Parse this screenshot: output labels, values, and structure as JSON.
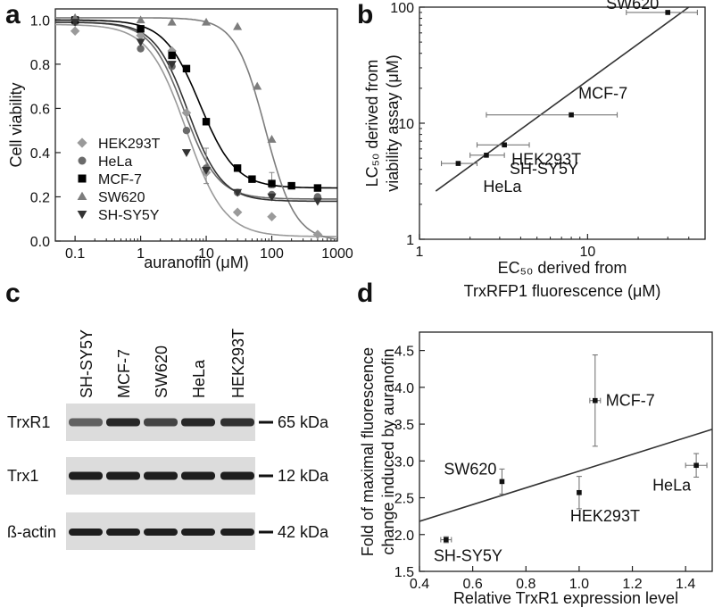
{
  "panel_labels": {
    "a": "a",
    "b": "b",
    "c": "c",
    "d": "d"
  },
  "chart_data": [
    {
      "panel": "a",
      "type": "scatter",
      "xlabel": "auranofin (μM)",
      "ylabel": "Cell viability",
      "xscale": "log",
      "xlim": [
        0.05,
        1000
      ],
      "ylim": [
        0.0,
        1.05
      ],
      "xticks": [
        0.1,
        1,
        10,
        100,
        1000
      ],
      "xtick_labels": [
        "0.1",
        "1",
        "10",
        "100",
        "1000"
      ],
      "yticks": [
        0.0,
        0.2,
        0.4,
        0.6,
        0.8,
        1.0
      ],
      "ytick_labels": [
        "0.0",
        "0.2",
        "0.4",
        "0.6",
        "0.8",
        "1.0"
      ],
      "legend_position": "bottom-left",
      "series": [
        {
          "name": "HEK293T",
          "marker": "diamond",
          "color": "#9a9a9a",
          "x": [
            0.1,
            1,
            3,
            5,
            10,
            30,
            100,
            500
          ],
          "y": [
            0.95,
            0.93,
            0.86,
            0.58,
            0.31,
            0.13,
            0.11,
            0.03
          ],
          "fit": {
            "bottom": 0.02,
            "top": 0.98,
            "ec50": 5.0,
            "hill": 1.5
          }
        },
        {
          "name": "HeLa",
          "marker": "circle",
          "color": "#6a6a6a",
          "x": [
            0.1,
            1,
            3,
            5,
            10,
            30,
            100,
            500
          ],
          "y": [
            0.99,
            0.87,
            0.79,
            0.5,
            0.33,
            0.22,
            0.21,
            0.2
          ],
          "fit": {
            "bottom": 0.19,
            "top": 0.99,
            "ec50": 4.6,
            "hill": 1.7
          }
        },
        {
          "name": "MCF-7",
          "marker": "square",
          "color": "#000000",
          "x": [
            0.1,
            1,
            3,
            5,
            10,
            30,
            50,
            100,
            200,
            500
          ],
          "y": [
            1.0,
            0.96,
            0.84,
            0.78,
            0.54,
            0.33,
            0.28,
            0.26,
            0.25,
            0.24
          ],
          "fit": {
            "bottom": 0.24,
            "top": 1.0,
            "ec50": 8.0,
            "hill": 1.6
          }
        },
        {
          "name": "SW620",
          "marker": "triangle-up",
          "color": "#7d7d7d",
          "x": [
            0.1,
            1,
            3,
            10,
            30,
            60,
            100
          ],
          "y": [
            1.01,
            1.0,
            0.99,
            0.99,
            0.97,
            0.7,
            0.46
          ],
          "fit": {
            "bottom": 0.0,
            "top": 1.01,
            "ec50": 80.0,
            "hill": 1.9
          }
        },
        {
          "name": "SH-SY5Y",
          "marker": "triangle-down",
          "color": "#333333",
          "x": [
            0.1,
            1,
            3,
            5,
            10,
            30,
            100,
            500
          ],
          "y": [
            0.99,
            0.9,
            0.8,
            0.4,
            0.32,
            0.22,
            0.2,
            0.18
          ],
          "fit": {
            "bottom": 0.18,
            "top": 0.99,
            "ec50": 5.3,
            "hill": 1.7
          }
        }
      ]
    },
    {
      "panel": "b",
      "type": "scatter",
      "xlabel_lines": [
        "EC₅₀ derived from",
        "TrxRFP1 fluorescence (μM)"
      ],
      "ylabel_lines": [
        "LC₅₀ derived from",
        "viability assay (μM)"
      ],
      "xscale": "log",
      "yscale": "log",
      "xlim": [
        1,
        50
      ],
      "ylim": [
        1,
        100
      ],
      "xticks": [
        1,
        10
      ],
      "xtick_labels": [
        "1",
        "10"
      ],
      "yticks": [
        1,
        10,
        100
      ],
      "ytick_labels": [
        "1",
        "10",
        "100"
      ],
      "points": [
        {
          "label": "SW620",
          "x": 30,
          "y": 90,
          "xerr": [
            17,
            45
          ]
        },
        {
          "label": "MCF-7",
          "x": 8,
          "y": 11.8,
          "xerr": [
            2.5,
            15
          ]
        },
        {
          "label": "HEK293T",
          "x": 3.2,
          "y": 6.5,
          "xerr": [
            2.2,
            4.5
          ]
        },
        {
          "label": "SH-SY5Y",
          "x": 2.5,
          "y": 5.3,
          "xerr": [
            2.0,
            3.2
          ]
        },
        {
          "label": "HeLa",
          "x": 1.7,
          "y": 4.5,
          "xerr": [
            1.35,
            2.2
          ]
        }
      ],
      "fit_line": {
        "x": [
          1.25,
          40
        ],
        "y": [
          2.6,
          100
        ]
      }
    },
    {
      "panel": "d",
      "type": "scatter",
      "xlabel": "Relative TrxR1 expression level",
      "ylabel_lines": [
        "Fold of maximal fluorescence",
        "change induced by auranofin"
      ],
      "xlim": [
        0.4,
        1.5
      ],
      "ylim": [
        1.5,
        4.75
      ],
      "xticks": [
        0.4,
        0.6,
        0.8,
        1.0,
        1.2,
        1.4
      ],
      "xtick_labels": [
        "0.4",
        "0.6",
        "0.8",
        "1.0",
        "1.2",
        "1.4"
      ],
      "yticks": [
        1.5,
        2.0,
        2.5,
        3.0,
        3.5,
        4.0,
        4.5
      ],
      "ytick_labels": [
        "1.5",
        "2.0",
        "2.5",
        "3.0",
        "3.5",
        "4.0",
        "4.5"
      ],
      "points": [
        {
          "label": "MCF-7",
          "x": 1.06,
          "y": 3.82,
          "xerr": 0.02,
          "yerr": 0.62
        },
        {
          "label": "SW620",
          "x": 0.71,
          "y": 2.72,
          "xerr": 0.0,
          "yerr": 0.17
        },
        {
          "label": "HEK293T",
          "x": 1.0,
          "y": 2.57,
          "xerr": 0.0,
          "yerr": 0.22
        },
        {
          "label": "HeLa",
          "x": 1.44,
          "y": 2.94,
          "xerr": 0.04,
          "yerr": 0.16
        },
        {
          "label": "SH-SY5Y",
          "x": 0.5,
          "y": 1.93,
          "xerr": 0.02,
          "yerr": 0.04
        }
      ],
      "fit_line": {
        "x": [
          0.4,
          1.5
        ],
        "y": [
          2.18,
          3.43
        ]
      }
    }
  ],
  "blot": {
    "lanes": [
      "SH-SY5Y",
      "MCF-7",
      "SW620",
      "HeLa",
      "HEK293T"
    ],
    "rows": [
      {
        "label": "TrxR1",
        "size": "65 kDa"
      },
      {
        "label": "Trx1",
        "size": "12 kDa"
      },
      {
        "label": "ß-actin",
        "size": "42 kDa"
      }
    ],
    "colors": {
      "background": "#dcdcdc",
      "band": "#1e1e1e"
    }
  }
}
